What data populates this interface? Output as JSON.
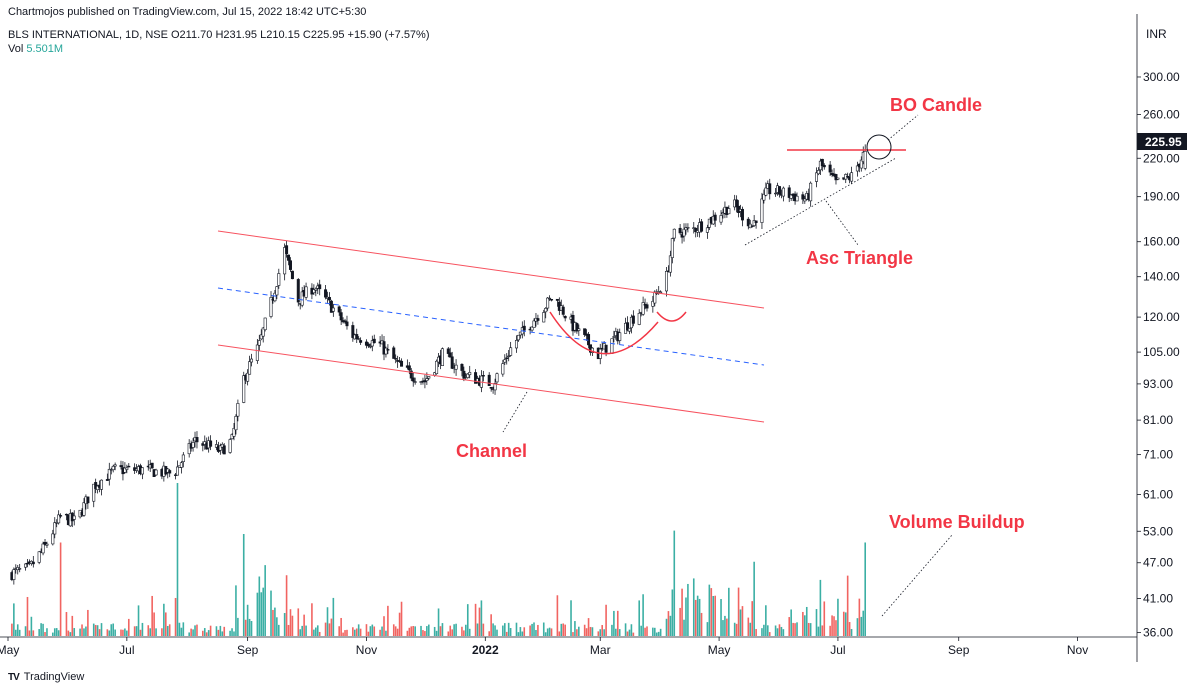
{
  "header": {
    "publisher_line": "Chartmojos published on TradingView.com, Jul 15, 2022 18:42 UTC+5:30"
  },
  "legend": {
    "symbol_line": "BLS INTERNATIONAL, 1D, NSE  O211.70  H231.95  L210.15  C225.95  +15.90 (+7.57%)",
    "vol_label": "Vol",
    "vol_value": "5.501M"
  },
  "price_axis": {
    "currency": "INR",
    "last_price_label": "225.95"
  },
  "footer": {
    "logo_text": "TV",
    "brand": "TradingView"
  },
  "colors": {
    "up": "#26a69a",
    "down": "#ef5350",
    "candle": "#131722",
    "annotation": "#f23645",
    "channel_line": "#f7525f",
    "midline": "#2962ff",
    "grid_axis": "#131722"
  },
  "annotations": {
    "channel": "Channel",
    "asc_triangle": "Asc Triangle",
    "bo_candle": "BO Candle",
    "volume_buildup": "Volume Buildup"
  },
  "chart_data": {
    "type": "candlestick",
    "title": "BLS INTERNATIONAL, 1D, NSE",
    "scale": "log",
    "ylim": [
      35,
      330
    ],
    "y_ticks": [
      300,
      260,
      220,
      190,
      160,
      140,
      120,
      105,
      93,
      81,
      71,
      61,
      53,
      47,
      41,
      36
    ],
    "y_tick_labels": [
      "300.00",
      "260.00",
      "220.00",
      "190.00",
      "160.00",
      "140.00",
      "120.00",
      "105.00",
      "93.00",
      "81.00",
      "71.00",
      "61.00",
      "53.00",
      "47.00",
      "41.00",
      "36.00"
    ],
    "x_range": [
      "2021-05-01",
      "2022-12-01"
    ],
    "x_ticks": [
      {
        "date": "2021-05-01",
        "label": "May"
      },
      {
        "date": "2021-07-01",
        "label": "Jul"
      },
      {
        "date": "2021-09-01",
        "label": "Sep"
      },
      {
        "date": "2021-11-01",
        "label": "Nov"
      },
      {
        "date": "2022-01-01",
        "label": "2022"
      },
      {
        "date": "2022-03-01",
        "label": "Mar"
      },
      {
        "date": "2022-05-01",
        "label": "May"
      },
      {
        "date": "2022-07-01",
        "label": "Jul"
      },
      {
        "date": "2022-09-01",
        "label": "Sep"
      },
      {
        "date": "2022-11-01",
        "label": "Nov"
      }
    ],
    "last_candle": {
      "date": "2022-07-15",
      "open": 211.7,
      "high": 231.95,
      "low": 210.15,
      "close": 225.95,
      "change": 15.9,
      "change_pct": 7.57,
      "volume_m": 5.501
    },
    "price_path": [
      {
        "date": "2021-05-01",
        "close": 45
      },
      {
        "date": "2021-05-12",
        "close": 46
      },
      {
        "date": "2021-05-20",
        "close": 50
      },
      {
        "date": "2021-05-28",
        "close": 56
      },
      {
        "date": "2021-06-05",
        "close": 55
      },
      {
        "date": "2021-06-14",
        "close": 63
      },
      {
        "date": "2021-06-25",
        "close": 67
      },
      {
        "date": "2021-07-10",
        "close": 67
      },
      {
        "date": "2021-07-25",
        "close": 66
      },
      {
        "date": "2021-08-05",
        "close": 75
      },
      {
        "date": "2021-08-18",
        "close": 72
      },
      {
        "date": "2021-08-24",
        "close": 75
      },
      {
        "date": "2021-08-30",
        "close": 95
      },
      {
        "date": "2021-09-07",
        "close": 108
      },
      {
        "date": "2021-09-14",
        "close": 130
      },
      {
        "date": "2021-09-20",
        "close": 155
      },
      {
        "date": "2021-09-27",
        "close": 128
      },
      {
        "date": "2021-10-05",
        "close": 135
      },
      {
        "date": "2021-10-14",
        "close": 125
      },
      {
        "date": "2021-10-25",
        "close": 112
      },
      {
        "date": "2021-11-08",
        "close": 108
      },
      {
        "date": "2021-11-20",
        "close": 98
      },
      {
        "date": "2021-12-01",
        "close": 94
      },
      {
        "date": "2021-12-10",
        "close": 104
      },
      {
        "date": "2021-12-22",
        "close": 96
      },
      {
        "date": "2022-01-05",
        "close": 93
      },
      {
        "date": "2022-01-15",
        "close": 108
      },
      {
        "date": "2022-01-25",
        "close": 118
      },
      {
        "date": "2022-02-05",
        "close": 130
      },
      {
        "date": "2022-02-15",
        "close": 116
      },
      {
        "date": "2022-02-28",
        "close": 104
      },
      {
        "date": "2022-03-10",
        "close": 112
      },
      {
        "date": "2022-03-20",
        "close": 122
      },
      {
        "date": "2022-03-28",
        "close": 128
      },
      {
        "date": "2022-04-04",
        "close": 140
      },
      {
        "date": "2022-04-08",
        "close": 165
      },
      {
        "date": "2022-04-18",
        "close": 168
      },
      {
        "date": "2022-04-28",
        "close": 175
      },
      {
        "date": "2022-05-08",
        "close": 185
      },
      {
        "date": "2022-05-18",
        "close": 170
      },
      {
        "date": "2022-05-26",
        "close": 195
      },
      {
        "date": "2022-06-05",
        "close": 192
      },
      {
        "date": "2022-06-15",
        "close": 188
      },
      {
        "date": "2022-06-22",
        "close": 215
      },
      {
        "date": "2022-06-30",
        "close": 200
      },
      {
        "date": "2022-07-08",
        "close": 205
      },
      {
        "date": "2022-07-15",
        "close": 225.95
      }
    ],
    "volume_spikes_m": [
      {
        "date": "2021-07-27",
        "value": 9.0
      },
      {
        "date": "2021-08-30",
        "value": 6.0
      },
      {
        "date": "2021-09-07",
        "value": 3.5
      },
      {
        "date": "2021-05-28",
        "value": 5.5
      },
      {
        "date": "2022-04-08",
        "value": 6.2
      },
      {
        "date": "2022-05-08",
        "value": 4.1
      },
      {
        "date": "2022-06-22",
        "value": 3.3
      },
      {
        "date": "2022-07-15",
        "value": 5.501
      }
    ]
  }
}
